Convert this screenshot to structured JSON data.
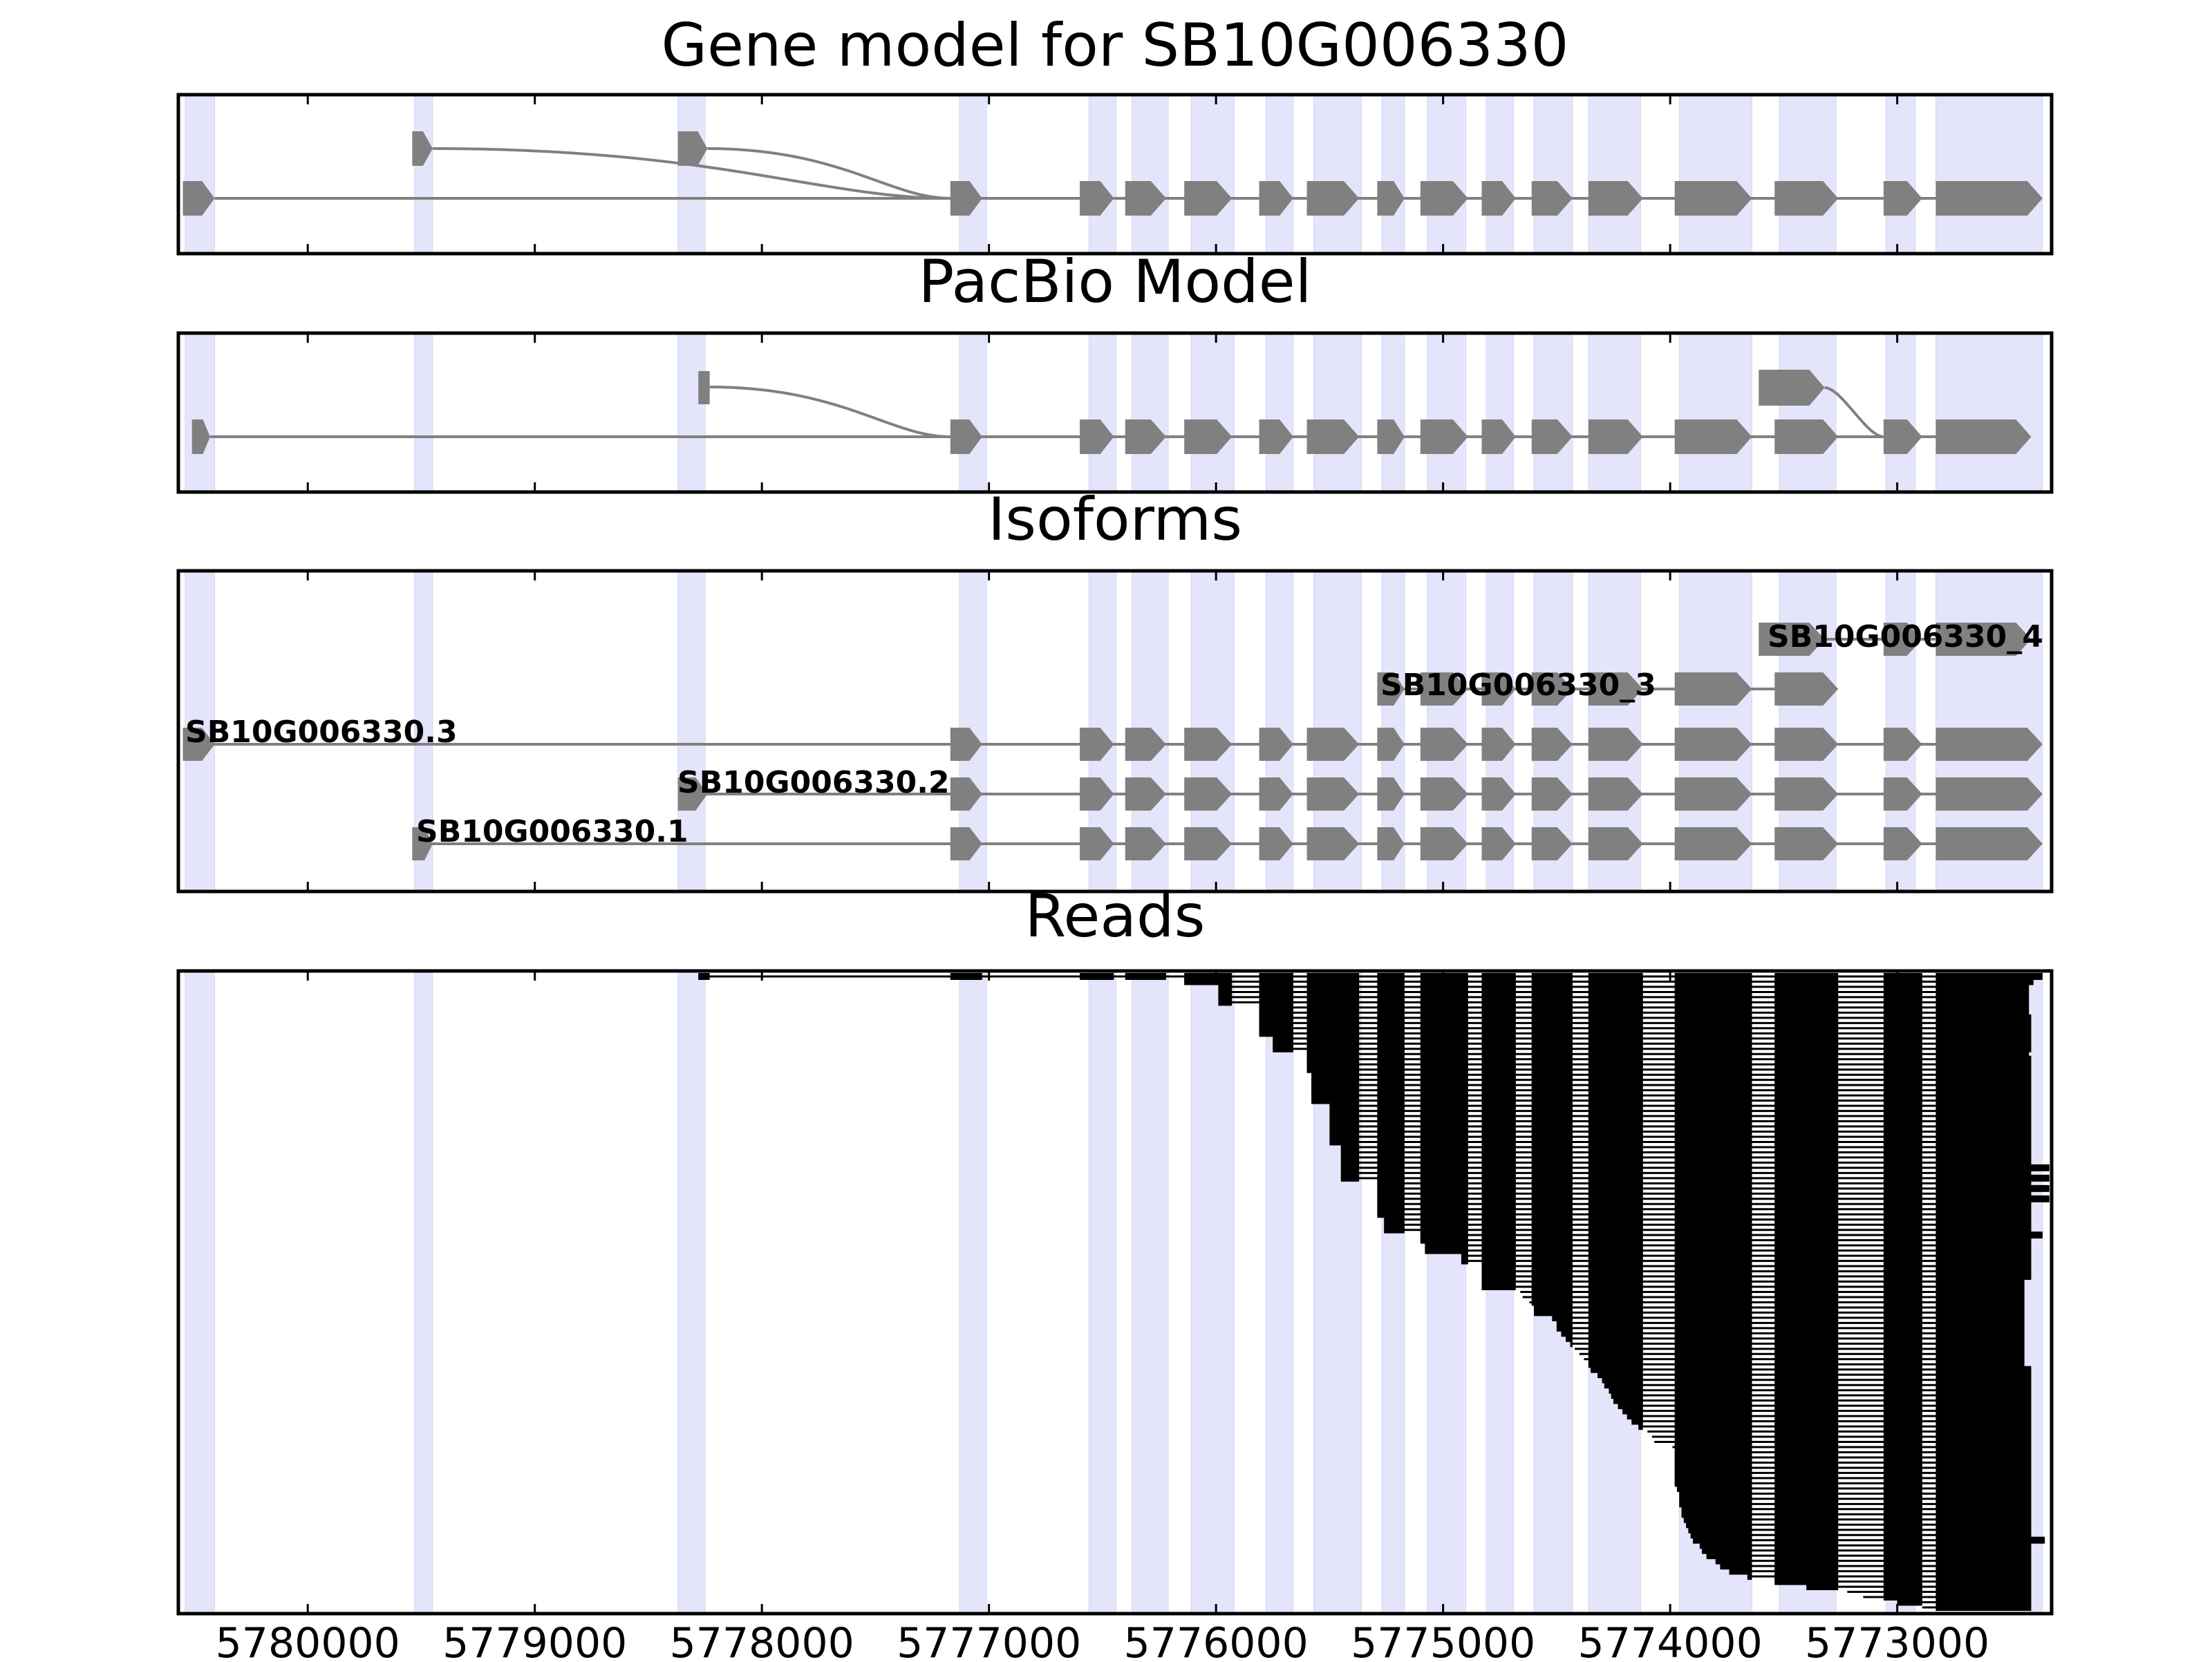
{
  "titles": {
    "gene_model": "Gene model for SB10G006330",
    "pacbio": "PacBio Model",
    "isoforms": "Isoforms",
    "reads": "Reads"
  },
  "colors": {
    "exon": "#808080",
    "highlight": "#e4e4fb",
    "read": "#000000",
    "axes": "#000000"
  },
  "chart_data": {
    "type": "gene-structure",
    "x_axis": {
      "range": [
        5780570,
        5772320
      ],
      "inverted": true,
      "ticks": [
        5780000,
        5779000,
        5778000,
        5777000,
        5776000,
        5775000,
        5774000,
        5773000
      ],
      "tick_labels": [
        "5780000",
        "5779000",
        "5778000",
        "5777000",
        "5776000",
        "5775000",
        "5774000",
        "5773000"
      ]
    },
    "highlight_regions": [
      [
        5780540,
        5780410
      ],
      [
        5779530,
        5779450
      ],
      [
        5778370,
        5778250
      ],
      [
        5777130,
        5777010
      ],
      [
        5776560,
        5776440
      ],
      [
        5776370,
        5776210
      ],
      [
        5776110,
        5775920
      ],
      [
        5775780,
        5775660
      ],
      [
        5775570,
        5775360
      ],
      [
        5775270,
        5775170
      ],
      [
        5775070,
        5774900
      ],
      [
        5774810,
        5774690
      ],
      [
        5774600,
        5774430
      ],
      [
        5774360,
        5774130
      ],
      [
        5773960,
        5773640
      ],
      [
        5773520,
        5773270
      ],
      [
        5773050,
        5772920
      ],
      [
        5772830,
        5772360
      ]
    ],
    "gene_model": {
      "exons": [
        [
          5780550,
          5780410
        ],
        [
          5779540,
          5779450
        ],
        [
          5778370,
          5778240
        ],
        [
          5777170,
          5777030
        ],
        [
          5776600,
          5776450
        ],
        [
          5776400,
          5776220
        ],
        [
          5776140,
          5775930
        ],
        [
          5775810,
          5775660
        ],
        [
          5775600,
          5775370
        ],
        [
          5775290,
          5775170
        ],
        [
          5775100,
          5774890
        ],
        [
          5774830,
          5774680
        ],
        [
          5774610,
          5774430
        ],
        [
          5774360,
          5774120
        ],
        [
          5773980,
          5773640
        ],
        [
          5773540,
          5773260
        ],
        [
          5773060,
          5772890
        ],
        [
          5772830,
          5772360
        ]
      ],
      "alt_first_exons": [
        [
          5779540,
          5779450
        ],
        [
          5778370,
          5778240
        ]
      ]
    },
    "pacbio_model": {
      "exons": [
        [
          5780510,
          5780430
        ],
        [
          5777170,
          5777030
        ],
        [
          5776600,
          5776450
        ],
        [
          5776400,
          5776220
        ],
        [
          5776140,
          5775930
        ],
        [
          5775810,
          5775660
        ],
        [
          5775600,
          5775370
        ],
        [
          5775290,
          5775170
        ],
        [
          5775100,
          5774890
        ],
        [
          5774830,
          5774680
        ],
        [
          5774610,
          5774430
        ],
        [
          5774360,
          5774120
        ],
        [
          5773980,
          5773640
        ],
        [
          5773540,
          5773260
        ],
        [
          5773060,
          5772890
        ],
        [
          5772830,
          5772410
        ]
      ],
      "alt_exons": [
        [
          5778280,
          5778230
        ],
        [
          5773610,
          5773320
        ]
      ]
    },
    "isoforms": [
      {
        "name": "SB10G006330_4",
        "exons": [
          [
            5773610,
            5773320
          ],
          [
            5773060,
            5772890
          ],
          [
            5772830,
            5772410
          ]
        ]
      },
      {
        "name": "SB10G006330_3",
        "exons": [
          [
            5775290,
            5775170
          ],
          [
            5775100,
            5774890
          ],
          [
            5774830,
            5774680
          ],
          [
            5774610,
            5774430
          ],
          [
            5774360,
            5774120
          ],
          [
            5773980,
            5773640
          ],
          [
            5773540,
            5773260
          ]
        ]
      },
      {
        "name": "SB10G006330.3",
        "exons": [
          [
            5780550,
            5780410
          ],
          [
            5777170,
            5777030
          ],
          [
            5776600,
            5776450
          ],
          [
            5776400,
            5776220
          ],
          [
            5776140,
            5775930
          ],
          [
            5775810,
            5775660
          ],
          [
            5775600,
            5775370
          ],
          [
            5775290,
            5775170
          ],
          [
            5775100,
            5774890
          ],
          [
            5774830,
            5774680
          ],
          [
            5774610,
            5774430
          ],
          [
            5774360,
            5774120
          ],
          [
            5773980,
            5773640
          ],
          [
            5773540,
            5773260
          ],
          [
            5773060,
            5772890
          ],
          [
            5772830,
            5772360
          ]
        ]
      },
      {
        "name": "SB10G006330.2",
        "exons": [
          [
            5778370,
            5778240
          ],
          [
            5777170,
            5777030
          ],
          [
            5776600,
            5776450
          ],
          [
            5776400,
            5776220
          ],
          [
            5776140,
            5775930
          ],
          [
            5775810,
            5775660
          ],
          [
            5775600,
            5775370
          ],
          [
            5775290,
            5775170
          ],
          [
            5775100,
            5774890
          ],
          [
            5774830,
            5774680
          ],
          [
            5774610,
            5774430
          ],
          [
            5774360,
            5774120
          ],
          [
            5773980,
            5773640
          ],
          [
            5773540,
            5773260
          ],
          [
            5773060,
            5772890
          ],
          [
            5772830,
            5772360
          ]
        ]
      },
      {
        "name": "SB10G006330.1",
        "exons": [
          [
            5779540,
            5779450
          ],
          [
            5777170,
            5777030
          ],
          [
            5776600,
            5776450
          ],
          [
            5776400,
            5776220
          ],
          [
            5776140,
            5775930
          ],
          [
            5775810,
            5775660
          ],
          [
            5775600,
            5775370
          ],
          [
            5775290,
            5775170
          ],
          [
            5775100,
            5774890
          ],
          [
            5774830,
            5774680
          ],
          [
            5774610,
            5774430
          ],
          [
            5774360,
            5774120
          ],
          [
            5773980,
            5773640
          ],
          [
            5773540,
            5773260
          ],
          [
            5773060,
            5772890
          ],
          [
            5772830,
            5772360
          ]
        ]
      }
    ],
    "reads": {
      "count": 123,
      "exon_boundaries": [
        [
          5778280,
          5778230
        ],
        [
          5777170,
          5777030
        ],
        [
          5776600,
          5776450
        ],
        [
          5776400,
          5776220
        ],
        [
          5776140,
          5775930
        ],
        [
          5775810,
          5775660
        ],
        [
          5775600,
          5775370
        ],
        [
          5775290,
          5775170
        ],
        [
          5775100,
          5774890
        ],
        [
          5774830,
          5774680
        ],
        [
          5774610,
          5774430
        ],
        [
          5774360,
          5774120
        ],
        [
          5773980,
          5773640
        ],
        [
          5773540,
          5773260
        ],
        [
          5773060,
          5772890
        ],
        [
          5772830,
          5772410
        ]
      ],
      "start_positions": [
        5778280,
        5776140,
        5775990,
        5775990,
        5775990,
        5775990,
        5775810,
        5775810,
        5775810,
        5775810,
        5775810,
        5775810,
        5775750,
        5775750,
        5775750,
        5775600,
        5775600,
        5775600,
        5775600,
        5775580,
        5775580,
        5775580,
        5775580,
        5775580,
        5775580,
        5775500,
        5775500,
        5775500,
        5775500,
        5775500,
        5775500,
        5775500,
        5775500,
        5775450,
        5775450,
        5775450,
        5775450,
        5775450,
        5775450,
        5775450,
        5775290,
        5775290,
        5775290,
        5775290,
        5775290,
        5775290,
        5775290,
        5775260,
        5775260,
        5775260,
        5775100,
        5775100,
        5775080,
        5775080,
        5774920,
        5774920,
        5774830,
        5774830,
        5774830,
        5774830,
        5774830,
        5774660,
        5774650,
        5774620,
        5774600,
        5774600,
        5774520,
        5774500,
        5774500,
        5774480,
        5774460,
        5774440,
        5774420,
        5774400,
        5774380,
        5774360,
        5774350,
        5774320,
        5774300,
        5774290,
        5774270,
        5774260,
        5774250,
        5774230,
        5774210,
        5774190,
        5774170,
        5774140,
        5774100,
        5774080,
        5774070,
        5773990,
        5773980,
        5773980,
        5773980,
        5773980,
        5773980,
        5773980,
        5773980,
        5773970,
        5773960,
        5773960,
        5773960,
        5773950,
        5773950,
        5773940,
        5773930,
        5773920,
        5773910,
        5773900,
        5773870,
        5773860,
        5773840,
        5773800,
        5773780,
        5773740,
        5773660,
        5773540,
        5773400,
        5773220,
        5773150,
        5773000,
        5772890
      ],
      "end_positions": [
        5772360,
        5772400,
        5772420,
        5772420,
        5772420,
        5772420,
        5772420,
        5772420,
        5772410,
        5772410,
        5772410,
        5772410,
        5772410,
        5772410,
        5772410,
        5772420,
        5772410,
        5772410,
        5772410,
        5772410,
        5772410,
        5772410,
        5772410,
        5772410,
        5772410,
        5772410,
        5772410,
        5772410,
        5772410,
        5772410,
        5772410,
        5772410,
        5772410,
        5772410,
        5772410,
        5772410,
        5772410,
        5772330,
        5772410,
        5772330,
        5772410,
        5772330,
        5772410,
        5772330,
        5772410,
        5772410,
        5772410,
        5772410,
        5772410,
        5772410,
        5772360,
        5772410,
        5772410,
        5772410,
        5772410,
        5772410,
        5772410,
        5772410,
        5772410,
        5772440,
        5772440,
        5772440,
        5772440,
        5772440,
        5772440,
        5772440,
        5772440,
        5772440,
        5772440,
        5772440,
        5772440,
        5772440,
        5772440,
        5772440,
        5772440,
        5772440,
        5772410,
        5772410,
        5772410,
        5772410,
        5772410,
        5772410,
        5772410,
        5772410,
        5772410,
        5772410,
        5772410,
        5772410,
        5772410,
        5772410,
        5772410,
        5772410,
        5772410,
        5772410,
        5772410,
        5772410,
        5772410,
        5772410,
        5772410,
        5772410,
        5772410,
        5772410,
        5772410,
        5772410,
        5772410,
        5772410,
        5772410,
        5772410,
        5772410,
        5772350,
        5772410,
        5772410,
        5772410,
        5772410,
        5772410,
        5772410,
        5772410,
        5772410,
        5772410,
        5772410,
        5772410,
        5772410,
        5772410
      ]
    }
  }
}
